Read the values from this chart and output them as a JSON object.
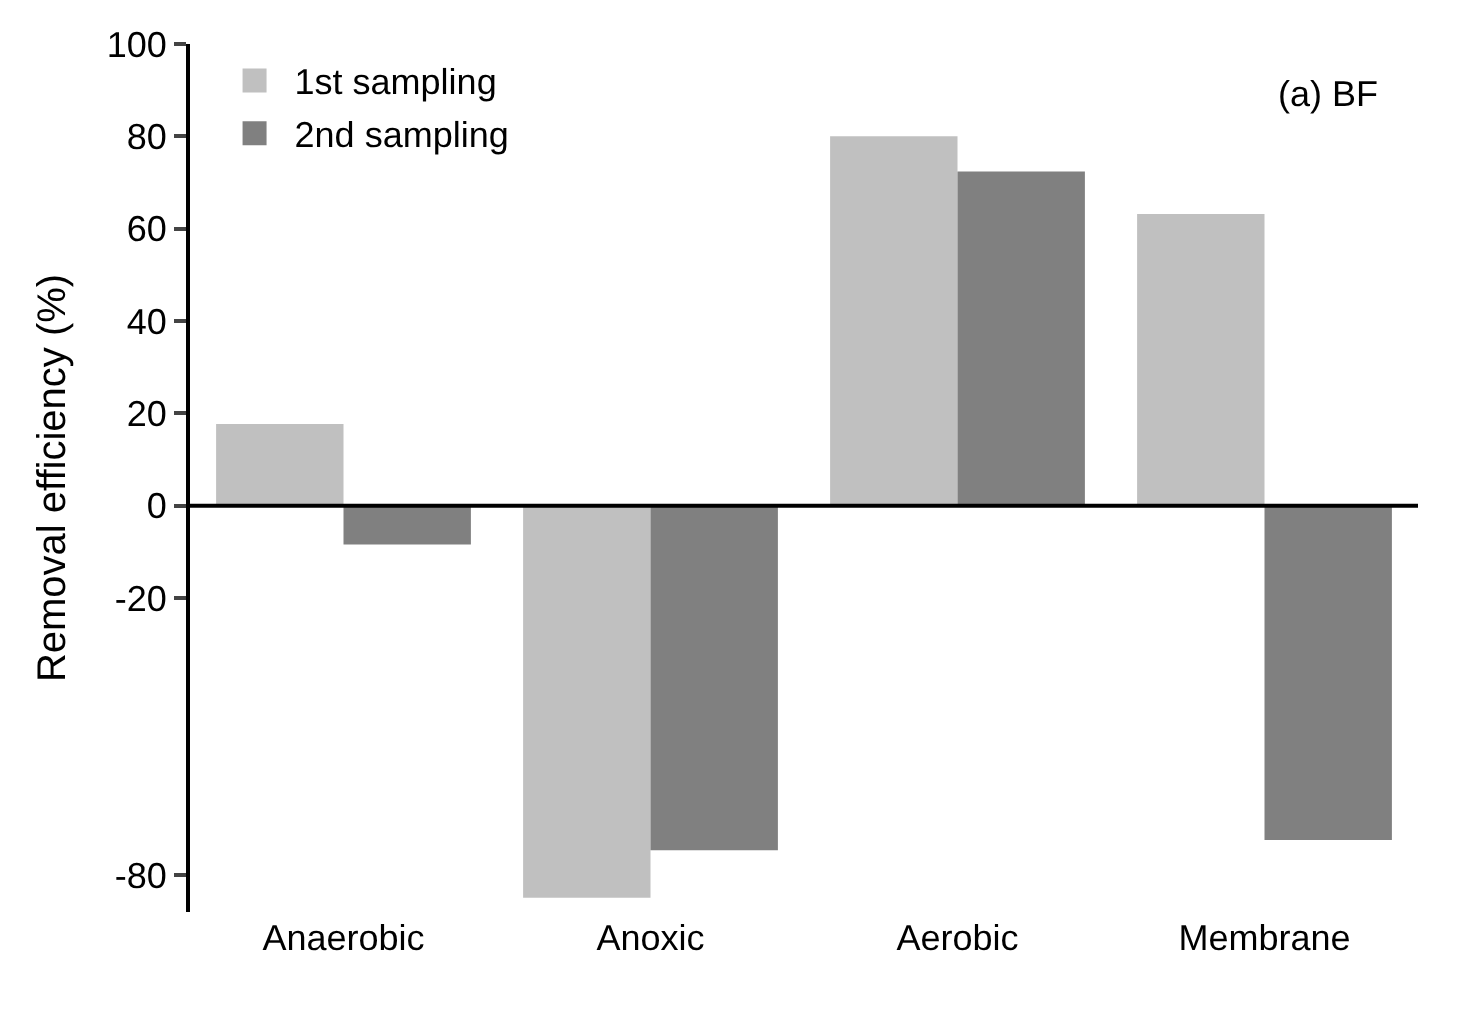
{
  "chart_data": {
    "type": "bar",
    "ylabel": "Removal efficiency (%)",
    "annotations": [
      "(a) BF"
    ],
    "categories": [
      "Anaerobic",
      "Anoxic",
      "Aerobic",
      "Membrane"
    ],
    "series": [
      {
        "name": "1st sampling",
        "color": "#c0c0c0",
        "values": [
          17.7,
          -84.9,
          80,
          63.2
        ]
      },
      {
        "name": "2nd sampling",
        "color": "#808080",
        "values": [
          -8.4,
          -74.6,
          72.4,
          -72.4
        ]
      }
    ],
    "ylim": [
      -88,
      100
    ],
    "yticks": [
      -80,
      -20,
      0,
      20,
      40,
      60,
      80,
      100
    ],
    "ref_lines": [
      {
        "axis": "y",
        "value": 0
      }
    ],
    "legend": "top left"
  }
}
